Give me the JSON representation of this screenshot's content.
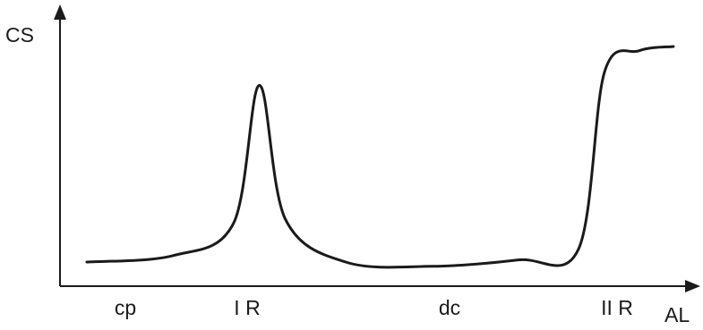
{
  "chart_data": {
    "type": "line",
    "xlabel": "AL",
    "ylabel": "CS",
    "categories": [
      "cp",
      "I R",
      "dc",
      "II R"
    ],
    "grid": false,
    "legend": "none",
    "series": [
      {
        "values": [
          {
            "x": 0.0,
            "y": 0.0
          },
          {
            "x": 0.5,
            "y": 0.03
          },
          {
            "x": 0.85,
            "y": 0.18
          },
          {
            "x": 1.0,
            "y": 0.82
          },
          {
            "x": 1.15,
            "y": 0.2
          },
          {
            "x": 1.5,
            "y": 0.0
          },
          {
            "x": 2.0,
            "y": -0.02
          },
          {
            "x": 2.5,
            "y": 0.01
          },
          {
            "x": 2.85,
            "y": 0.06
          },
          {
            "x": 3.0,
            "y": 0.88
          },
          {
            "x": 3.2,
            "y": 0.98
          },
          {
            "x": 3.4,
            "y": 1.0
          }
        ]
      }
    ]
  }
}
